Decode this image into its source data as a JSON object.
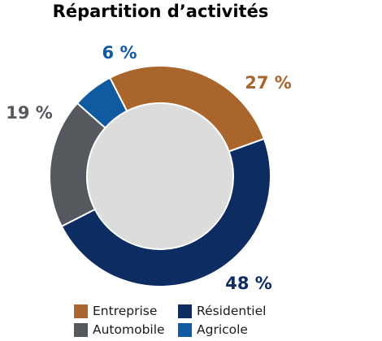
{
  "chart_data": {
    "type": "pie",
    "title": "Répartition d’activités",
    "slices": [
      {
        "name": "Entreprise",
        "value": 27,
        "label": "27 %",
        "color": "#a9652c"
      },
      {
        "name": "Résidentiel",
        "value": 48,
        "label": "48 %",
        "color": "#0d2d62"
      },
      {
        "name": "Automobile",
        "value": 19,
        "label": "19 %",
        "color": "#55595d"
      },
      {
        "name": "Agricole",
        "value": 6,
        "label": "6 %",
        "color": "#0f5aa0"
      }
    ],
    "center_color": "#dcdcdc",
    "legend_placement": "bottom"
  }
}
